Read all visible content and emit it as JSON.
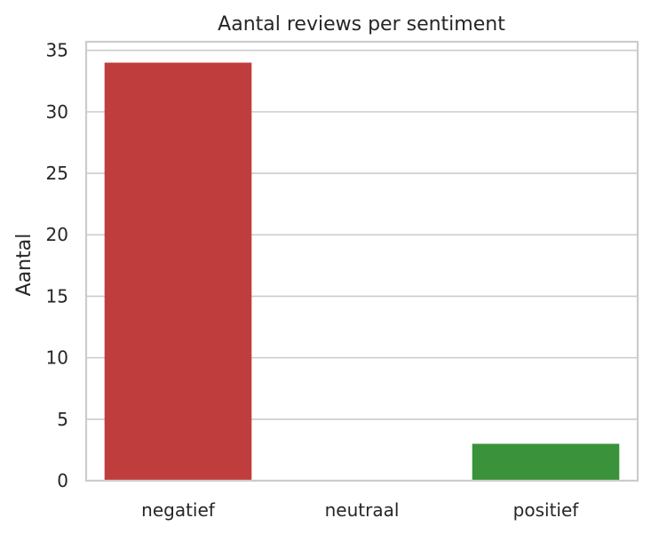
{
  "chart_data": {
    "type": "bar",
    "title": "Aantal reviews per sentiment",
    "xlabel": "",
    "ylabel": "Aantal",
    "categories": [
      "negatief",
      "neutraal",
      "positief"
    ],
    "values": [
      34,
      0,
      3
    ],
    "bar_colors": [
      "#c03d3e",
      "#3274a1",
      "#3a923a"
    ],
    "ylim": [
      0,
      35.7
    ],
    "yticks": [
      0,
      5,
      10,
      15,
      20,
      25,
      30,
      35
    ],
    "ytick_labels": [
      "0",
      "5",
      "10",
      "15",
      "20",
      "25",
      "30",
      "35"
    ],
    "grid": true,
    "legend": "none",
    "style": {
      "grid_color": "#cccccc",
      "spine_color": "#cccccc",
      "text_color": "#262626",
      "background": "#ffffff"
    }
  }
}
